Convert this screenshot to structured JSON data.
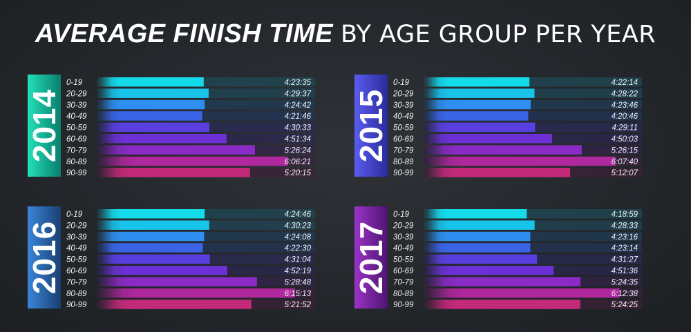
{
  "title": {
    "strong": "AVERAGE FINISH TIME",
    "light": "BY AGE GROUP PER YEAR"
  },
  "chart_data": [
    {
      "type": "bar",
      "year": "2014",
      "year_gradient": [
        "#22e0b8",
        "#0a7f6e"
      ],
      "categories": [
        "0-19",
        "20-29",
        "30-39",
        "40-49",
        "50-59",
        "60-69",
        "70-79",
        "80-89",
        "90-99"
      ],
      "labels": [
        "4:23:35",
        "4:29:37",
        "4:24:42",
        "4:21:46",
        "4:30:33",
        "4:51:34",
        "5:26:24",
        "6:06:21",
        "5:20:15"
      ]
    },
    {
      "type": "bar",
      "year": "2015",
      "year_gradient": [
        "#5b5cf0",
        "#2a2b9a"
      ],
      "categories": [
        "0-19",
        "20-29",
        "30-39",
        "40-49",
        "50-59",
        "60-69",
        "70-79",
        "80-89",
        "90-99"
      ],
      "labels": [
        "4:22:14",
        "4:28:22",
        "4:23:46",
        "4:20:46",
        "4:29:11",
        "4:50:03",
        "5:26:15",
        "6:07:40",
        "5:12:07"
      ]
    },
    {
      "type": "bar",
      "year": "2016",
      "year_gradient": [
        "#3a86d8",
        "#1a3f72"
      ],
      "categories": [
        "0-19",
        "20-29",
        "30-39",
        "40-49",
        "50-59",
        "60-69",
        "70-79",
        "80-89",
        "90-99"
      ],
      "labels": [
        "4:24:46",
        "4:30:23",
        "4:24:08",
        "4:22:30",
        "4:31:04",
        "4:52:19",
        "5:28:48",
        "6:15:13",
        "5:21:52"
      ]
    },
    {
      "type": "bar",
      "year": "2017",
      "year_gradient": [
        "#9b32c8",
        "#4d1570"
      ],
      "categories": [
        "0-19",
        "20-29",
        "30-39",
        "40-49",
        "50-59",
        "60-69",
        "70-79",
        "80-89",
        "90-99"
      ],
      "labels": [
        "4:18:59",
        "4:28:33",
        "4:23:16",
        "4:23:14",
        "4:31:27",
        "4:51:36",
        "5:24:35",
        "6:12:38",
        "5:24:25"
      ]
    }
  ],
  "bar_colors": [
    "#14dbea",
    "#19c4ea",
    "#2e8ff0",
    "#3a64e6",
    "#5a3fe0",
    "#6d30d6",
    "#8a2bc6",
    "#b0289e",
    "#c42a7a"
  ],
  "track_colors": [
    "#1f4a55",
    "#1f4655",
    "#203c57",
    "#223457",
    "#2a2a55",
    "#2c2650",
    "#33244a",
    "#3a2242",
    "#3d2238"
  ]
}
